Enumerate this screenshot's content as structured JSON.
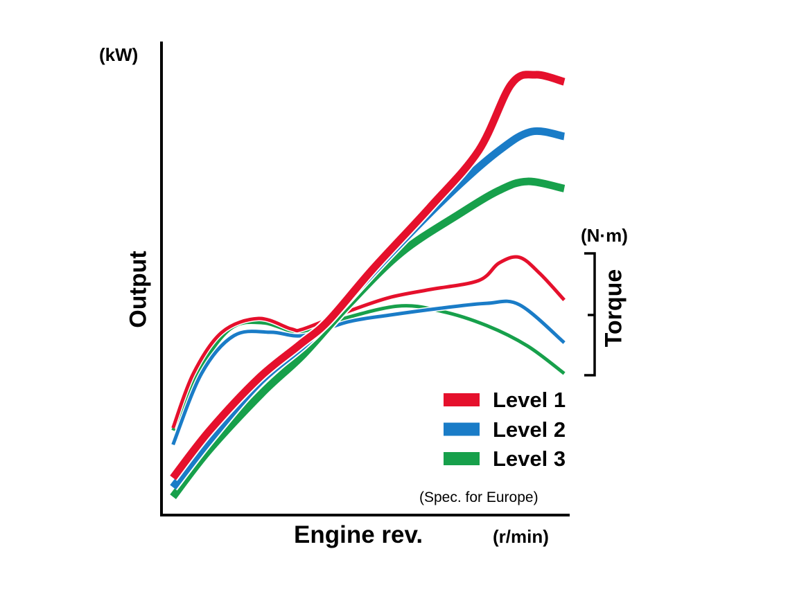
{
  "chart_data": {
    "type": "line",
    "title": "",
    "xlabel": "Engine rev.",
    "x_unit": "(r/min)",
    "ylabel": "Output",
    "y_unit": "(kW)",
    "y2label": "Torque",
    "y2_unit": "(N·m)",
    "note": "(Spec. for Europe)",
    "tick_labels": "none",
    "grid": false,
    "legend_position": "bottom-right",
    "xlim": [
      0,
      100
    ],
    "ylim": [
      0,
      100
    ],
    "series": [
      {
        "name": "Level 1",
        "kind": "output",
        "color": "#e5102c",
        "points": [
          [
            3,
            8
          ],
          [
            12,
            18
          ],
          [
            24,
            29
          ],
          [
            34,
            36
          ],
          [
            41,
            41
          ],
          [
            52,
            52
          ],
          [
            66,
            65
          ],
          [
            78,
            77
          ],
          [
            86,
            91
          ],
          [
            92,
            93
          ],
          [
            99,
            91.5
          ]
        ]
      },
      {
        "name": "Level 2",
        "kind": "output",
        "color": "#1a7cc7",
        "points": [
          [
            3,
            6
          ],
          [
            12,
            16
          ],
          [
            24,
            28
          ],
          [
            35,
            36
          ],
          [
            42,
            42
          ],
          [
            56,
            55
          ],
          [
            71,
            68
          ],
          [
            83,
            77
          ],
          [
            91,
            81
          ],
          [
            99,
            80
          ]
        ]
      },
      {
        "name": "Level 3",
        "kind": "output",
        "color": "#17a04b",
        "points": [
          [
            3,
            4
          ],
          [
            12,
            14
          ],
          [
            25,
            26
          ],
          [
            35,
            34
          ],
          [
            46,
            44.5
          ],
          [
            59,
            55.5
          ],
          [
            73,
            63.5
          ],
          [
            83,
            68.6
          ],
          [
            90,
            70.5
          ],
          [
            99,
            69
          ]
        ]
      },
      {
        "name": "Level 1",
        "kind": "torque",
        "color": "#e5102c",
        "points": [
          [
            3,
            18.5
          ],
          [
            8,
            30
          ],
          [
            15,
            38.7
          ],
          [
            24,
            41.6
          ],
          [
            32,
            39.4
          ],
          [
            35,
            39.4
          ],
          [
            46,
            43.1
          ],
          [
            56,
            46
          ],
          [
            66,
            47.7
          ],
          [
            78,
            49.6
          ],
          [
            83,
            53.3
          ],
          [
            88,
            54.5
          ],
          [
            93,
            51.1
          ],
          [
            99,
            45.5
          ]
        ]
      },
      {
        "name": "Level 2",
        "kind": "torque",
        "color": "#1a7cc7",
        "points": [
          [
            3,
            15
          ],
          [
            10,
            30
          ],
          [
            18,
            38
          ],
          [
            27,
            38.7
          ],
          [
            35,
            38
          ],
          [
            46,
            40.9
          ],
          [
            56,
            42.3
          ],
          [
            69,
            43.8
          ],
          [
            80,
            44.8
          ],
          [
            88,
            44.5
          ],
          [
            99,
            36.5
          ]
        ]
      },
      {
        "name": "Level 3",
        "kind": "torque",
        "color": "#17a04b",
        "points": [
          [
            3,
            18
          ],
          [
            9,
            30
          ],
          [
            17,
            39.4
          ],
          [
            25,
            40.7
          ],
          [
            34,
            38.7
          ],
          [
            42,
            40.9
          ],
          [
            58,
            44.2
          ],
          [
            69,
            43.1
          ],
          [
            80,
            40.1
          ],
          [
            90,
            35.8
          ],
          [
            99,
            30
          ]
        ]
      }
    ],
    "legend": [
      "Level 1",
      "Level 2",
      "Level 3"
    ]
  }
}
